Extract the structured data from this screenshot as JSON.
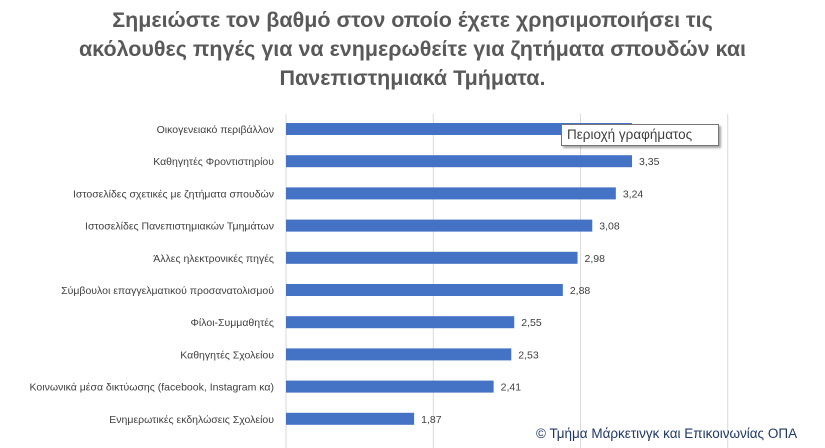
{
  "chart_data": {
    "type": "bar",
    "orientation": "horizontal",
    "title": [
      "Σημειώστε τον βαθμό στον οποίο έχετε χρησιμοποιήσει τις",
      "ακόλουθες πηγές για να ενημερωθείτε για ζητήματα σπουδών και",
      "Πανεπιστημιακά Τμήματα."
    ],
    "categories": [
      "Οικογενειακό περιβάλλον",
      "Καθηγητές Φροντιστηρίου",
      "Ιστοσελίδες σχετικές με ζητήματα σπουδών",
      "Ιστοσελίδες Πανεπιστημιακών Τμημάτων",
      "Άλλες ηλεκτρονικές πηγές",
      "Σύμβουλοι επαγγελματικού προσανατολισμού",
      "Φίλοι-Συμμαθητές",
      "Καθηγητές Σχολείου",
      "Κοινωνικά μέσα δικτύωσης (facebook, Instagram κα)",
      "Ενημερωτικές εκδηλώσεις Σχολείου"
    ],
    "values": [
      3.35,
      3.35,
      3.24,
      3.08,
      2.98,
      2.88,
      2.55,
      2.53,
      2.41,
      1.87
    ],
    "value_labels": [
      "",
      "3,35",
      "3,24",
      "3,08",
      "2,98",
      "2,88",
      "2,55",
      "2,53",
      "2,41",
      "1,87"
    ],
    "xlim": [
      1,
      5
    ],
    "gridlines_at": [
      2,
      3,
      4
    ],
    "grid": true,
    "bar_color": "#4472c4"
  },
  "tooltip_text": "Περιοχή γραφήματος",
  "footer_text": "© Τμήμα Μάρκετινγκ και Επικοινωνίας ΟΠΑ"
}
